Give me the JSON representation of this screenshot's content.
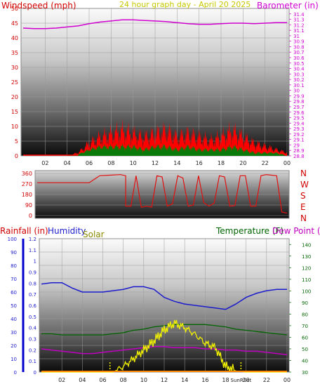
{
  "colors": {
    "windspeed": "#d00000",
    "barometer": "#d000d0",
    "direction": "#e01010",
    "rain": "#d00000",
    "humidity": "#1c1ccc",
    "solar": "#8a8a00",
    "temperature": "#006400",
    "dewpoint": "#c000c0",
    "solarline": "#f0f000",
    "wind_fill": "#ff0000",
    "gust_fill": "#0a7a0a",
    "rain_axis": "#0000d0"
  },
  "chart_data": [
    {
      "type": "area",
      "title": "24 hour graph day - April 20 2025",
      "left_axis_label": "Windspeed (mph)",
      "right_axis_label": "Barometer (in)",
      "x_ticks": [
        "02",
        "04",
        "06",
        "08",
        "10",
        "12",
        "14",
        "16",
        "18",
        "20",
        "22",
        "00"
      ],
      "y_ticks_left": [
        "0",
        "5",
        "10",
        "15",
        "20",
        "25",
        "30",
        "35",
        "40",
        "45",
        "50"
      ],
      "ylim_left": [
        0,
        50
      ],
      "y_ticks_right": [
        "28.8",
        "28.9",
        "29",
        "29.1",
        "29.2",
        "29.3",
        "29.4",
        "29.5",
        "29.6",
        "29.7",
        "29.8",
        "29.9",
        "30",
        "30.1",
        "30.2",
        "30.3",
        "30.4",
        "30.5",
        "30.6",
        "30.7",
        "30.8",
        "30.9",
        "31",
        "31.1",
        "31.2",
        "31.3",
        "31.4"
      ],
      "ylim_right": [
        28.8,
        31.5
      ],
      "hours": [
        0,
        1,
        2,
        3,
        4,
        5,
        6,
        7,
        8,
        9,
        10,
        11,
        12,
        13,
        14,
        15,
        16,
        17,
        18,
        19,
        20,
        21,
        22,
        23,
        24
      ],
      "series": [
        {
          "name": "Windspeed",
          "values": [
            0,
            0,
            0,
            0,
            0,
            1,
            4,
            6,
            7,
            8,
            7,
            6,
            7,
            8,
            6,
            7,
            6,
            5,
            6,
            8,
            6,
            4,
            3,
            2,
            1
          ]
        },
        {
          "name": "Gust",
          "values": [
            0,
            0,
            0,
            0,
            0,
            0.5,
            2,
            3,
            3,
            3,
            3,
            2,
            3,
            3,
            2,
            3,
            2,
            2,
            2,
            3,
            2,
            1,
            1,
            1,
            0
          ]
        },
        {
          "name": "Barometer",
          "values": [
            31.14,
            31.13,
            31.13,
            31.14,
            31.16,
            31.18,
            31.22,
            31.25,
            31.27,
            31.29,
            31.29,
            31.28,
            31.27,
            31.26,
            31.24,
            31.22,
            31.21,
            31.21,
            31.22,
            31.23,
            31.23,
            31.22,
            31.23,
            31.24,
            31.24
          ]
        }
      ]
    },
    {
      "type": "line",
      "left_axis_label": "",
      "y_ticks_left": [
        "0",
        "90",
        "180",
        "270",
        "360"
      ],
      "ylim_left": [
        0,
        360
      ],
      "compass_labels": [
        "N",
        "W",
        "S",
        "E",
        "N"
      ],
      "hours": [
        0,
        1,
        2,
        3,
        4,
        5,
        5.5,
        6,
        7,
        8,
        8.5,
        9,
        10,
        11,
        12,
        13,
        14,
        15,
        16,
        17,
        18,
        19,
        20,
        21,
        22,
        23,
        23.5,
        24
      ],
      "series": [
        {
          "name": "Wind direction",
          "values": [
            280,
            280,
            280,
            280,
            280,
            280,
            310,
            340,
            345,
            350,
            80,
            75,
            70,
            72,
            330,
            100,
            320,
            90,
            110,
            105,
            330,
            85,
            340,
            80,
            350,
            340,
            30,
            20
          ]
        }
      ]
    },
    {
      "type": "line",
      "labels": {
        "rain": "Rainfall (in)",
        "humidity": "Humidity",
        "solar": "Solar",
        "temperature": "Temperature (F)",
        "dewpoint": "Dew Point (F)",
        "sunrise_sunset": "SunRSet"
      },
      "y_ticks_humidity": [
        "0",
        "10",
        "20",
        "30",
        "40",
        "50",
        "60",
        "70",
        "80",
        "90",
        "100"
      ],
      "ylim_humidity": [
        0,
        100
      ],
      "y_ticks_rain": [
        "0",
        "0.1",
        "0.2",
        "0.3",
        "0.4",
        "0.5",
        "0.6",
        "0.7",
        "0.8",
        "0.9",
        "1",
        "1.1",
        "1.2"
      ],
      "ylim_rain": [
        0,
        1.2
      ],
      "y_ticks_temp": [
        "30",
        "40",
        "50",
        "60",
        "70",
        "80",
        "90",
        "100",
        "110",
        "120",
        "130",
        "140"
      ],
      "ylim_temp": [
        30,
        145
      ],
      "x_ticks": [
        "02",
        "04",
        "06",
        "08",
        "10",
        "12",
        "14",
        "16",
        "18",
        "20",
        "22",
        "00"
      ],
      "hours": [
        0,
        1,
        2,
        3,
        4,
        5,
        6,
        7,
        8,
        9,
        10,
        11,
        12,
        13,
        14,
        15,
        16,
        17,
        18,
        19,
        20,
        21,
        22,
        23,
        24
      ],
      "sunrise_hour": 6.7,
      "sunset_hour": 19.5,
      "series": [
        {
          "name": "Humidity",
          "values": [
            66,
            67,
            67,
            63,
            60,
            60,
            60,
            61,
            62,
            64,
            64,
            62,
            56,
            53,
            51,
            50,
            49,
            48,
            47,
            51,
            56,
            59,
            61,
            62,
            62
          ]
        },
        {
          "name": "Temperature",
          "values": [
            63,
            63,
            62,
            62,
            62,
            62,
            62,
            63,
            64,
            66,
            67,
            69,
            70,
            71,
            71,
            71,
            71,
            70,
            69,
            67,
            66,
            65,
            64,
            63,
            62
          ]
        },
        {
          "name": "Dew Point",
          "values": [
            50,
            49,
            48,
            47,
            46,
            46,
            47,
            48,
            49,
            50,
            51,
            52,
            52,
            51,
            51,
            51,
            50,
            50,
            49,
            49,
            48,
            48,
            47,
            46,
            45
          ]
        },
        {
          "name": "Solar",
          "values": [
            0,
            0,
            0,
            0,
            0,
            0,
            0,
            0,
            0.05,
            0.12,
            0.2,
            0.28,
            0.38,
            0.44,
            0.4,
            0.34,
            0.26,
            0.22,
            0.05,
            0.01,
            0,
            0,
            0,
            0,
            0
          ]
        },
        {
          "name": "Rainfall",
          "values": [
            0,
            0,
            0,
            0,
            0,
            0,
            0,
            0,
            0,
            0,
            0,
            0,
            0,
            0,
            0,
            0,
            0,
            0,
            0,
            0,
            0,
            0,
            0,
            0,
            0
          ]
        }
      ]
    }
  ]
}
